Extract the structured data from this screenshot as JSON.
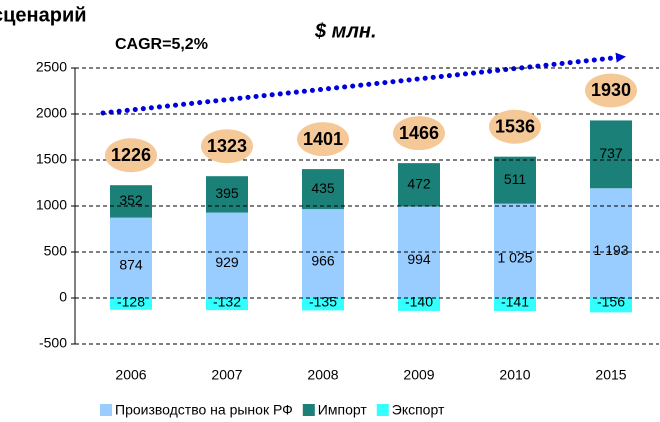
{
  "chart_data": {
    "type": "bar",
    "title": "сценарий",
    "subtitle": "$ млн.",
    "annotations": [
      "CAGR=5,2%"
    ],
    "categories": [
      "2006",
      "2007",
      "2008",
      "2009",
      "2010",
      "2015"
    ],
    "series": [
      {
        "name": "Производство на рынок РФ",
        "color": "#99ccff",
        "values": [
          874,
          929,
          966,
          994,
          1025,
          1193
        ],
        "value_labels": [
          "874",
          "929",
          "966",
          "994",
          "1 025",
          "1 193"
        ]
      },
      {
        "name": "Импорт",
        "color": "#1a8078",
        "values": [
          352,
          395,
          435,
          472,
          511,
          737
        ]
      },
      {
        "name": "Экспорт",
        "color": "#33ffff",
        "values": [
          -128,
          -132,
          -135,
          -140,
          -141,
          -156
        ]
      }
    ],
    "totals": [
      1226,
      1323,
      1401,
      1466,
      1536,
      1930
    ],
    "ylim": [
      -500,
      2500
    ],
    "yticks": [
      -500,
      0,
      500,
      1000,
      1500,
      2000,
      2500
    ],
    "grid": true,
    "stacked": true,
    "legend": "bottom"
  }
}
